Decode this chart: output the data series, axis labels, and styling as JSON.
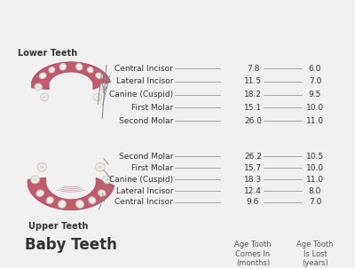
{
  "title": "Baby Teeth",
  "bg_color": "#f0f0f0",
  "upper_label": "Upper Teeth",
  "lower_label": "Lower Teeth",
  "col_header_1": "Age Tooth\nComes In\n(months)",
  "col_header_2": "Age Tooth\nIs Lost\n(years)",
  "upper_teeth": [
    {
      "name": "Central Incisor",
      "comes_in": "9.6",
      "lost": "7.0"
    },
    {
      "name": "Lateral Incisor",
      "comes_in": "12.4",
      "lost": "8.0"
    },
    {
      "name": "Canine (Cuspid)",
      "comes_in": "18.3",
      "lost": "11.0"
    },
    {
      "name": "First Molar",
      "comes_in": "15.7",
      "lost": "10.0"
    },
    {
      "name": "Second Molar",
      "comes_in": "26.2",
      "lost": "10.5"
    }
  ],
  "lower_teeth": [
    {
      "name": "Second Molar",
      "comes_in": "26.0",
      "lost": "11.0"
    },
    {
      "name": "First Molar",
      "comes_in": "15.1",
      "lost": "10.0"
    },
    {
      "name": "Canine (Cuspid)",
      "comes_in": "18.2",
      "lost": "9.5"
    },
    {
      "name": "Lateral Incisor",
      "comes_in": "11.5",
      "lost": "7.0"
    },
    {
      "name": "Central Incisor",
      "comes_in": "7.8",
      "lost": "6.0"
    }
  ],
  "gum_color": "#c25a6e",
  "gum_dark": "#a04060",
  "tooth_color": "#f0ede8",
  "tooth_shadow": "#d0ccc5",
  "text_color": "#333333",
  "line_color": "#888888",
  "header_color": "#555555"
}
